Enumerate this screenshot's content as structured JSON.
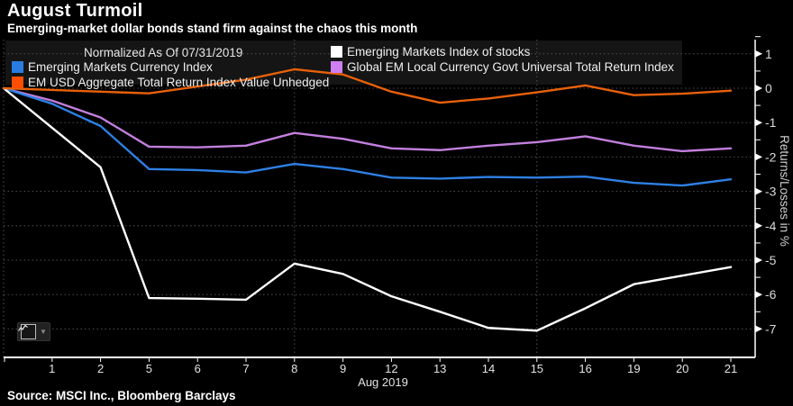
{
  "header": {
    "title": "August Turmoil",
    "subtitle": "Emerging-market dollar bonds stand firm against the chaos this month"
  },
  "legend": {
    "normalized": "Normalized As Of 07/31/2019",
    "items": [
      {
        "label": "Emerging Markets Index of stocks",
        "color": "#ffffff"
      },
      {
        "label": "Emerging Markets Currency Index",
        "color": "#2b7ce0"
      },
      {
        "label": "Global EM Local Currency Govt Universal Total Return Index",
        "color": "#ce7ff0"
      },
      {
        "label": "EM USD Aggregate Total Return Index Value Unhedged",
        "color": "#ff4e00"
      }
    ]
  },
  "chart_data": {
    "type": "line",
    "x": [
      "07/31",
      "1",
      "2",
      "5",
      "6",
      "7",
      "8",
      "9",
      "12",
      "13",
      "14",
      "15",
      "16",
      "19",
      "20",
      "21"
    ],
    "x_tick_labels": [
      "1",
      "2",
      "5",
      "6",
      "7",
      "8",
      "9",
      "12",
      "13",
      "14",
      "15",
      "16",
      "19",
      "20",
      "21"
    ],
    "x_axis_label": "Aug 2019",
    "ylabel": "Returns/Losses in %",
    "ylim": [
      -7.6,
      1.45
    ],
    "yticks": [
      1,
      0,
      -1,
      -2,
      -3,
      -4,
      -5,
      -6,
      -7
    ],
    "grid": "dotted",
    "vertical_gridlines_at": [
      "07/31",
      "8",
      "15"
    ],
    "legend_position": "top-inside",
    "series": [
      {
        "name": "Global EM Local Currency Govt Universal Total Return Index",
        "color": "#c27fdd",
        "values": [
          0,
          -0.36,
          -0.85,
          -1.7,
          -1.72,
          -1.67,
          -1.3,
          -1.47,
          -1.75,
          -1.8,
          -1.67,
          -1.57,
          -1.4,
          -1.67,
          -1.83,
          -1.75
        ]
      },
      {
        "name": "Emerging Markets Currency Index",
        "color": "#2e80e4",
        "values": [
          0,
          -0.45,
          -1.1,
          -2.35,
          -2.38,
          -2.45,
          -2.2,
          -2.35,
          -2.6,
          -2.63,
          -2.58,
          -2.6,
          -2.57,
          -2.75,
          -2.83,
          -2.65
        ]
      },
      {
        "name": "Emerging Markets Index of stocks",
        "color": "#ffffff",
        "values": [
          0,
          -1.15,
          -2.3,
          -6.1,
          -6.12,
          -6.15,
          -5.1,
          -5.4,
          -6.05,
          -6.5,
          -6.97,
          -7.05,
          -6.4,
          -5.7,
          -5.45,
          -5.2
        ]
      },
      {
        "name": "EM USD Aggregate Total Return Index Value Unhedged",
        "color": "#e8610a",
        "values": [
          0,
          -0.05,
          -0.1,
          -0.15,
          0.05,
          0.25,
          0.55,
          0.4,
          -0.1,
          -0.42,
          -0.3,
          -0.12,
          0.08,
          -0.2,
          -0.16,
          -0.07
        ]
      }
    ]
  },
  "widget": {
    "chart_type_button": "line-chart selector"
  },
  "footer": {
    "source": "Source: MSCI Inc., Bloomberg Barclays"
  }
}
